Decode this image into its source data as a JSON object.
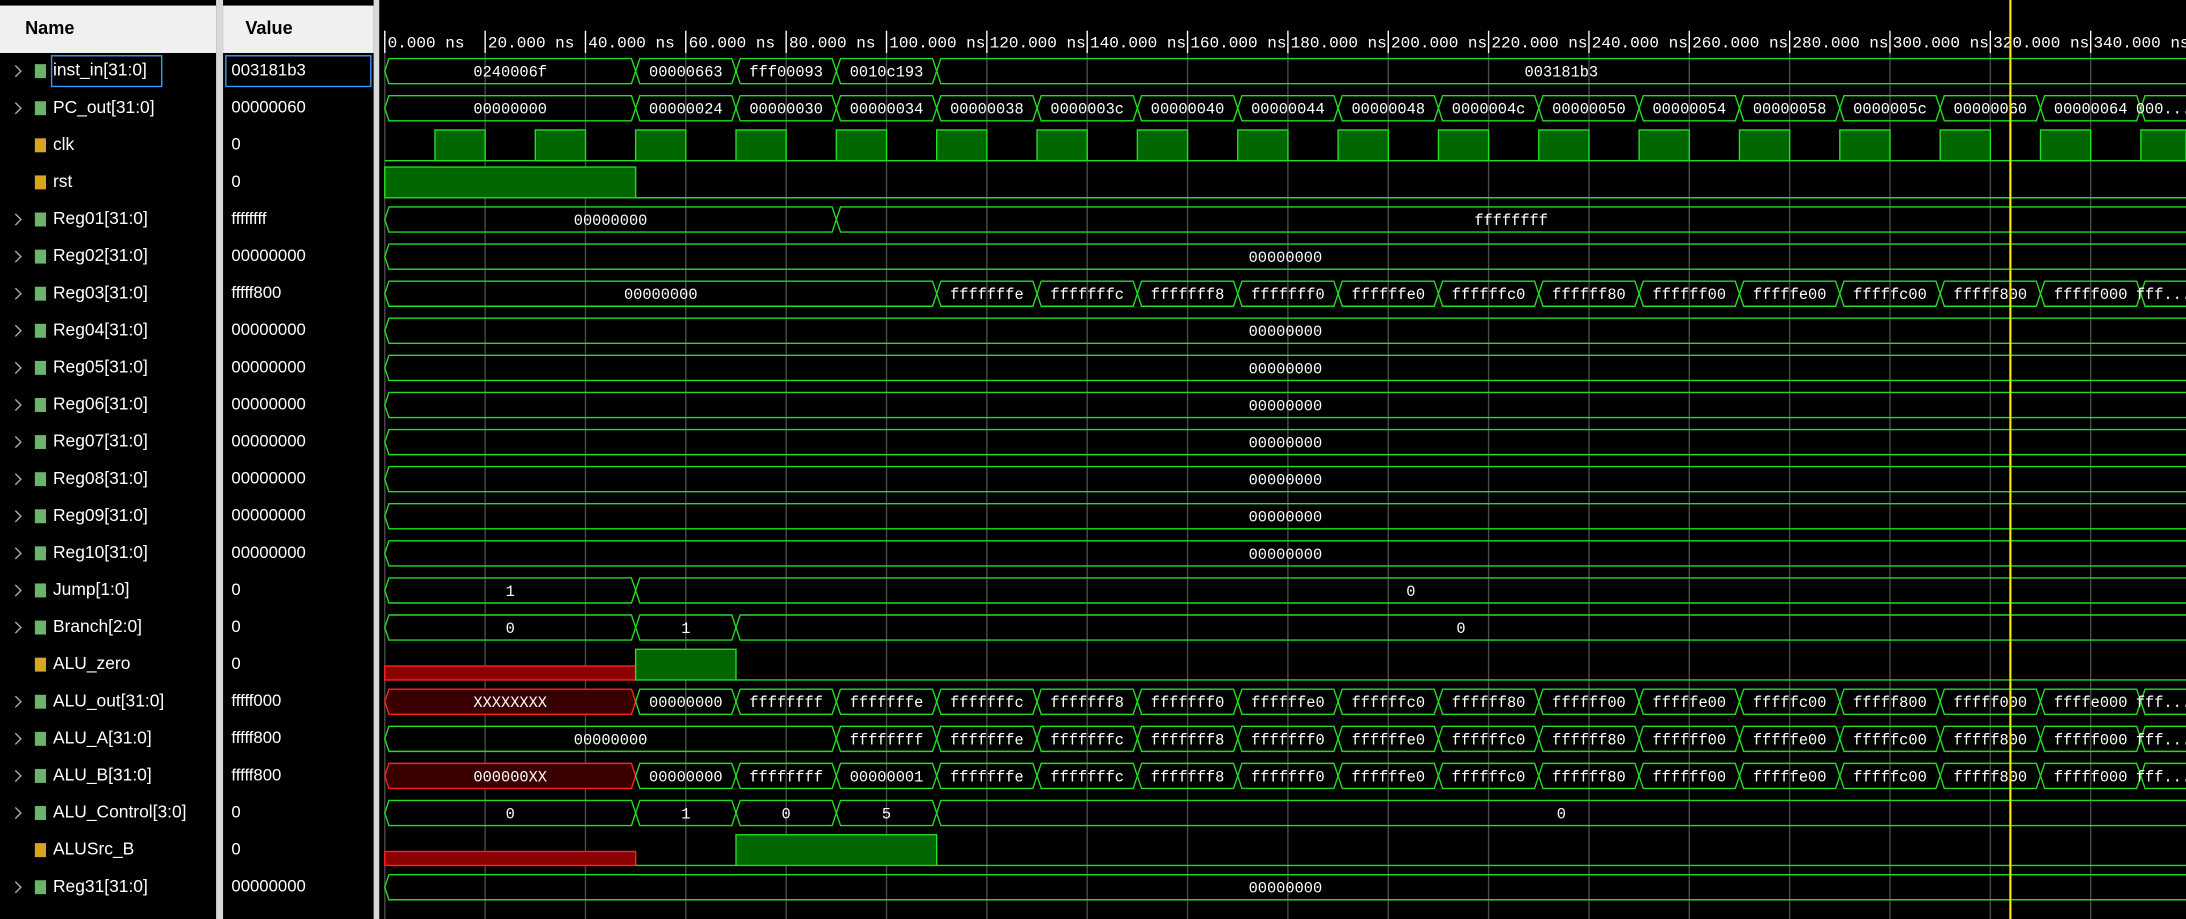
{
  "header": {
    "name": "Name",
    "value": "Value"
  },
  "time_axis": {
    "range": [
      0,
      359
    ],
    "cursor": 324,
    "ticks": [
      {
        "value": 0,
        "label": "0.000 ns"
      },
      {
        "value": 20,
        "label": "20.000 ns"
      },
      {
        "value": 40,
        "label": "40.000 ns"
      },
      {
        "value": 60,
        "label": "60.000 ns"
      },
      {
        "value": 80,
        "label": "80.000 ns"
      },
      {
        "value": 100,
        "label": "100.000 ns"
      },
      {
        "value": 120,
        "label": "120.000 ns"
      },
      {
        "value": 140,
        "label": "140.000 ns"
      },
      {
        "value": 160,
        "label": "160.000 ns"
      },
      {
        "value": 180,
        "label": "180.000 ns"
      },
      {
        "value": 200,
        "label": "200.000 ns"
      },
      {
        "value": 220,
        "label": "220.000 ns"
      },
      {
        "value": 240,
        "label": "240.000 ns"
      },
      {
        "value": 260,
        "label": "260.000 ns"
      },
      {
        "value": 280,
        "label": "280.000 ns"
      },
      {
        "value": 300,
        "label": "300.000 ns"
      },
      {
        "value": 320,
        "label": "320.000 ns"
      },
      {
        "value": 340,
        "label": "340.000 ns"
      }
    ]
  },
  "signals": [
    {
      "name": "inst_in[31:0]",
      "value": "003181b3",
      "kind": "bus",
      "selected": true,
      "segments": [
        {
          "start": 0,
          "label": "0240006f"
        },
        {
          "start": 50,
          "label": "00000663"
        },
        {
          "start": 70,
          "label": "fff00093"
        },
        {
          "start": 90,
          "label": "0010c193"
        },
        {
          "start": 110,
          "label": "003181b3"
        }
      ]
    },
    {
      "name": "PC_out[31:0]",
      "value": "00000060",
      "kind": "bus",
      "segments": [
        {
          "start": 0,
          "label": "00000000"
        },
        {
          "start": 50,
          "label": "00000024"
        },
        {
          "start": 70,
          "label": "00000030"
        },
        {
          "start": 90,
          "label": "00000034"
        },
        {
          "start": 110,
          "label": "00000038"
        },
        {
          "start": 130,
          "label": "0000003c"
        },
        {
          "start": 150,
          "label": "00000040"
        },
        {
          "start": 170,
          "label": "00000044"
        },
        {
          "start": 190,
          "label": "00000048"
        },
        {
          "start": 210,
          "label": "0000004c"
        },
        {
          "start": 230,
          "label": "00000050"
        },
        {
          "start": 250,
          "label": "00000054"
        },
        {
          "start": 270,
          "label": "00000058"
        },
        {
          "start": 290,
          "label": "0000005c"
        },
        {
          "start": 310,
          "label": "00000060"
        },
        {
          "start": 330,
          "label": "00000064"
        },
        {
          "start": 350,
          "label": "000..."
        }
      ]
    },
    {
      "name": "clk",
      "value": "0",
      "kind": "bit",
      "clock": {
        "period": 20,
        "rise": 10
      }
    },
    {
      "name": "rst",
      "value": "0",
      "kind": "bit",
      "segments": [
        {
          "start": 0,
          "level": 1
        },
        {
          "start": 50,
          "level": 0
        }
      ]
    },
    {
      "name": "Reg01[31:0]",
      "value": "ffffffff",
      "kind": "bus",
      "segments": [
        {
          "start": 0,
          "label": "00000000"
        },
        {
          "start": 90,
          "label": "ffffffff"
        }
      ]
    },
    {
      "name": "Reg02[31:0]",
      "value": "00000000",
      "kind": "bus",
      "segments": [
        {
          "start": 0,
          "label": "00000000"
        }
      ]
    },
    {
      "name": "Reg03[31:0]",
      "value": "fffff800",
      "kind": "bus",
      "segments": [
        {
          "start": 0,
          "label": "00000000"
        },
        {
          "start": 110,
          "label": "fffffffe"
        },
        {
          "start": 130,
          "label": "fffffffc"
        },
        {
          "start": 150,
          "label": "fffffff8"
        },
        {
          "start": 170,
          "label": "fffffff0"
        },
        {
          "start": 190,
          "label": "ffffffe0"
        },
        {
          "start": 210,
          "label": "ffffffc0"
        },
        {
          "start": 230,
          "label": "ffffff80"
        },
        {
          "start": 250,
          "label": "ffffff00"
        },
        {
          "start": 270,
          "label": "fffffe00"
        },
        {
          "start": 290,
          "label": "fffffc00"
        },
        {
          "start": 310,
          "label": "fffff800"
        },
        {
          "start": 330,
          "label": "fffff000"
        },
        {
          "start": 350,
          "label": "fff..."
        }
      ]
    },
    {
      "name": "Reg04[31:0]",
      "value": "00000000",
      "kind": "bus",
      "segments": [
        {
          "start": 0,
          "label": "00000000"
        }
      ]
    },
    {
      "name": "Reg05[31:0]",
      "value": "00000000",
      "kind": "bus",
      "segments": [
        {
          "start": 0,
          "label": "00000000"
        }
      ]
    },
    {
      "name": "Reg06[31:0]",
      "value": "00000000",
      "kind": "bus",
      "segments": [
        {
          "start": 0,
          "label": "00000000"
        }
      ]
    },
    {
      "name": "Reg07[31:0]",
      "value": "00000000",
      "kind": "bus",
      "segments": [
        {
          "start": 0,
          "label": "00000000"
        }
      ]
    },
    {
      "name": "Reg08[31:0]",
      "value": "00000000",
      "kind": "bus",
      "segments": [
        {
          "start": 0,
          "label": "00000000"
        }
      ]
    },
    {
      "name": "Reg09[31:0]",
      "value": "00000000",
      "kind": "bus",
      "segments": [
        {
          "start": 0,
          "label": "00000000"
        }
      ]
    },
    {
      "name": "Reg10[31:0]",
      "value": "00000000",
      "kind": "bus",
      "segments": [
        {
          "start": 0,
          "label": "00000000"
        }
      ]
    },
    {
      "name": "Jump[1:0]",
      "value": "0",
      "kind": "bus",
      "segments": [
        {
          "start": 0,
          "label": "1"
        },
        {
          "start": 50,
          "label": "0"
        }
      ]
    },
    {
      "name": "Branch[2:0]",
      "value": "0",
      "kind": "bus",
      "segments": [
        {
          "start": 0,
          "label": "0"
        },
        {
          "start": 50,
          "label": "1"
        },
        {
          "start": 70,
          "label": "0"
        }
      ]
    },
    {
      "name": "ALU_zero",
      "value": "0",
      "kind": "bit",
      "segments": [
        {
          "start": 0,
          "level": "X"
        },
        {
          "start": 50,
          "level": 1
        },
        {
          "start": 70,
          "level": 0
        }
      ]
    },
    {
      "name": "ALU_out[31:0]",
      "value": "fffff000",
      "kind": "bus",
      "segments": [
        {
          "start": 0,
          "label": "XXXXXXXX"
        },
        {
          "start": 50,
          "label": "00000000"
        },
        {
          "start": 70,
          "label": "ffffffff"
        },
        {
          "start": 90,
          "label": "fffffffe"
        },
        {
          "start": 110,
          "label": "fffffffc"
        },
        {
          "start": 130,
          "label": "fffffff8"
        },
        {
          "start": 150,
          "label": "fffffff0"
        },
        {
          "start": 170,
          "label": "ffffffe0"
        },
        {
          "start": 190,
          "label": "ffffffc0"
        },
        {
          "start": 210,
          "label": "ffffff80"
        },
        {
          "start": 230,
          "label": "ffffff00"
        },
        {
          "start": 250,
          "label": "fffffe00"
        },
        {
          "start": 270,
          "label": "fffffc00"
        },
        {
          "start": 290,
          "label": "fffff800"
        },
        {
          "start": 310,
          "label": "fffff000"
        },
        {
          "start": 330,
          "label": "ffffe000"
        },
        {
          "start": 350,
          "label": "fff..."
        }
      ]
    },
    {
      "name": "ALU_A[31:0]",
      "value": "fffff800",
      "kind": "bus",
      "segments": [
        {
          "start": 0,
          "label": "00000000"
        },
        {
          "start": 90,
          "label": "ffffffff"
        },
        {
          "start": 110,
          "label": "fffffffe"
        },
        {
          "start": 130,
          "label": "fffffffc"
        },
        {
          "start": 150,
          "label": "fffffff8"
        },
        {
          "start": 170,
          "label": "fffffff0"
        },
        {
          "start": 190,
          "label": "ffffffe0"
        },
        {
          "start": 210,
          "label": "ffffffc0"
        },
        {
          "start": 230,
          "label": "ffffff80"
        },
        {
          "start": 250,
          "label": "ffffff00"
        },
        {
          "start": 270,
          "label": "fffffe00"
        },
        {
          "start": 290,
          "label": "fffffc00"
        },
        {
          "start": 310,
          "label": "fffff800"
        },
        {
          "start": 330,
          "label": "fffff000"
        },
        {
          "start": 350,
          "label": "fff..."
        }
      ]
    },
    {
      "name": "ALU_B[31:0]",
      "value": "fffff800",
      "kind": "bus",
      "segments": [
        {
          "start": 0,
          "label": "000000XX"
        },
        {
          "start": 50,
          "label": "00000000"
        },
        {
          "start": 70,
          "label": "ffffffff"
        },
        {
          "start": 90,
          "label": "00000001"
        },
        {
          "start": 110,
          "label": "fffffffe"
        },
        {
          "start": 130,
          "label": "fffffffc"
        },
        {
          "start": 150,
          "label": "fffffff8"
        },
        {
          "start": 170,
          "label": "fffffff0"
        },
        {
          "start": 190,
          "label": "ffffffe0"
        },
        {
          "start": 210,
          "label": "ffffffc0"
        },
        {
          "start": 230,
          "label": "ffffff80"
        },
        {
          "start": 250,
          "label": "ffffff00"
        },
        {
          "start": 270,
          "label": "fffffe00"
        },
        {
          "start": 290,
          "label": "fffffc00"
        },
        {
          "start": 310,
          "label": "fffff800"
        },
        {
          "start": 330,
          "label": "fffff000"
        },
        {
          "start": 350,
          "label": "fff..."
        }
      ]
    },
    {
      "name": "ALU_Control[3:0]",
      "value": "0",
      "kind": "bus",
      "segments": [
        {
          "start": 0,
          "label": "0"
        },
        {
          "start": 50,
          "label": "1"
        },
        {
          "start": 70,
          "label": "0"
        },
        {
          "start": 90,
          "label": "5"
        },
        {
          "start": 110,
          "label": "0"
        }
      ]
    },
    {
      "name": "ALUSrc_B",
      "value": "0",
      "kind": "bit",
      "segments": [
        {
          "start": 0,
          "level": "X"
        },
        {
          "start": 50,
          "level": 0
        },
        {
          "start": 70,
          "level": 1
        },
        {
          "start": 110,
          "level": 0
        }
      ]
    },
    {
      "name": "Reg31[31:0]",
      "value": "00000000",
      "kind": "bus",
      "segments": [
        {
          "start": 0,
          "label": "00000000"
        }
      ]
    }
  ]
}
